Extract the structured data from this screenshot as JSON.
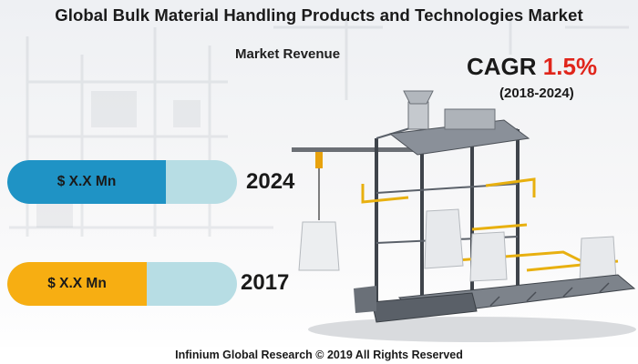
{
  "header": {
    "title": "Global Bulk Material Handling Products and Technologies Market",
    "subtitle": "Market Revenue"
  },
  "cagr": {
    "label": "CAGR",
    "value": "1.5%",
    "period": "(2018-2024)",
    "value_color": "#e0251b"
  },
  "revenue_bars": [
    {
      "value": "$ X.X Mn",
      "year": "2024",
      "color": "#1f93c5"
    },
    {
      "value": "$ X.X Mn",
      "year": "2017",
      "color": "#f7ae12"
    }
  ],
  "track_color": "#b7dde4",
  "illustration": {
    "icon": "bulk-bag-filling-machine-icon"
  },
  "footer": {
    "text": "Infinium Global Research © 2019 All Rights Reserved"
  }
}
